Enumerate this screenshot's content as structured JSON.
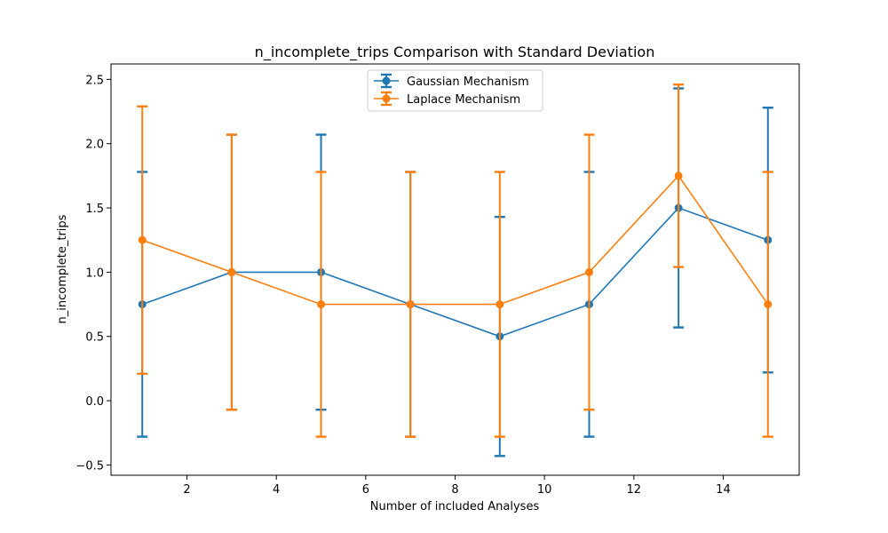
{
  "chart_data": {
    "type": "line",
    "title": "n_incomplete_trips Comparison with Standard Deviation",
    "xlabel": "Number of included Analyses",
    "ylabel": "n_incomplete_trips",
    "xlim": [
      0.3,
      15.7
    ],
    "ylim": [
      -0.58,
      2.62
    ],
    "xticks": [
      2,
      4,
      6,
      8,
      10,
      12,
      14
    ],
    "xtick_labels": [
      "2",
      "4",
      "6",
      "8",
      "10",
      "12",
      "14"
    ],
    "yticks": [
      -0.5,
      0.0,
      0.5,
      1.0,
      1.5,
      2.0,
      2.5
    ],
    "ytick_labels": [
      "−0.5",
      "0.0",
      "0.5",
      "1.0",
      "1.5",
      "2.0",
      "2.5"
    ],
    "grid": false,
    "legend_position": "top-center",
    "series": [
      {
        "name": "Gaussian Mechanism",
        "color": "#1f77b4",
        "x": [
          1,
          3,
          5,
          7,
          9,
          11,
          13,
          15
        ],
        "y": [
          0.75,
          1.0,
          1.0,
          0.75,
          0.5,
          0.75,
          1.5,
          1.25
        ],
        "std": [
          1.03,
          1.07,
          1.07,
          1.03,
          0.93,
          1.03,
          0.93,
          1.03
        ]
      },
      {
        "name": "Laplace Mechanism",
        "color": "#ff7f0e",
        "x": [
          1,
          3,
          5,
          7,
          9,
          11,
          13,
          15
        ],
        "y": [
          1.25,
          1.0,
          0.75,
          0.75,
          0.75,
          1.0,
          1.75,
          0.75
        ],
        "std": [
          1.04,
          1.07,
          1.03,
          1.03,
          1.03,
          1.07,
          0.71,
          1.03
        ]
      }
    ]
  }
}
